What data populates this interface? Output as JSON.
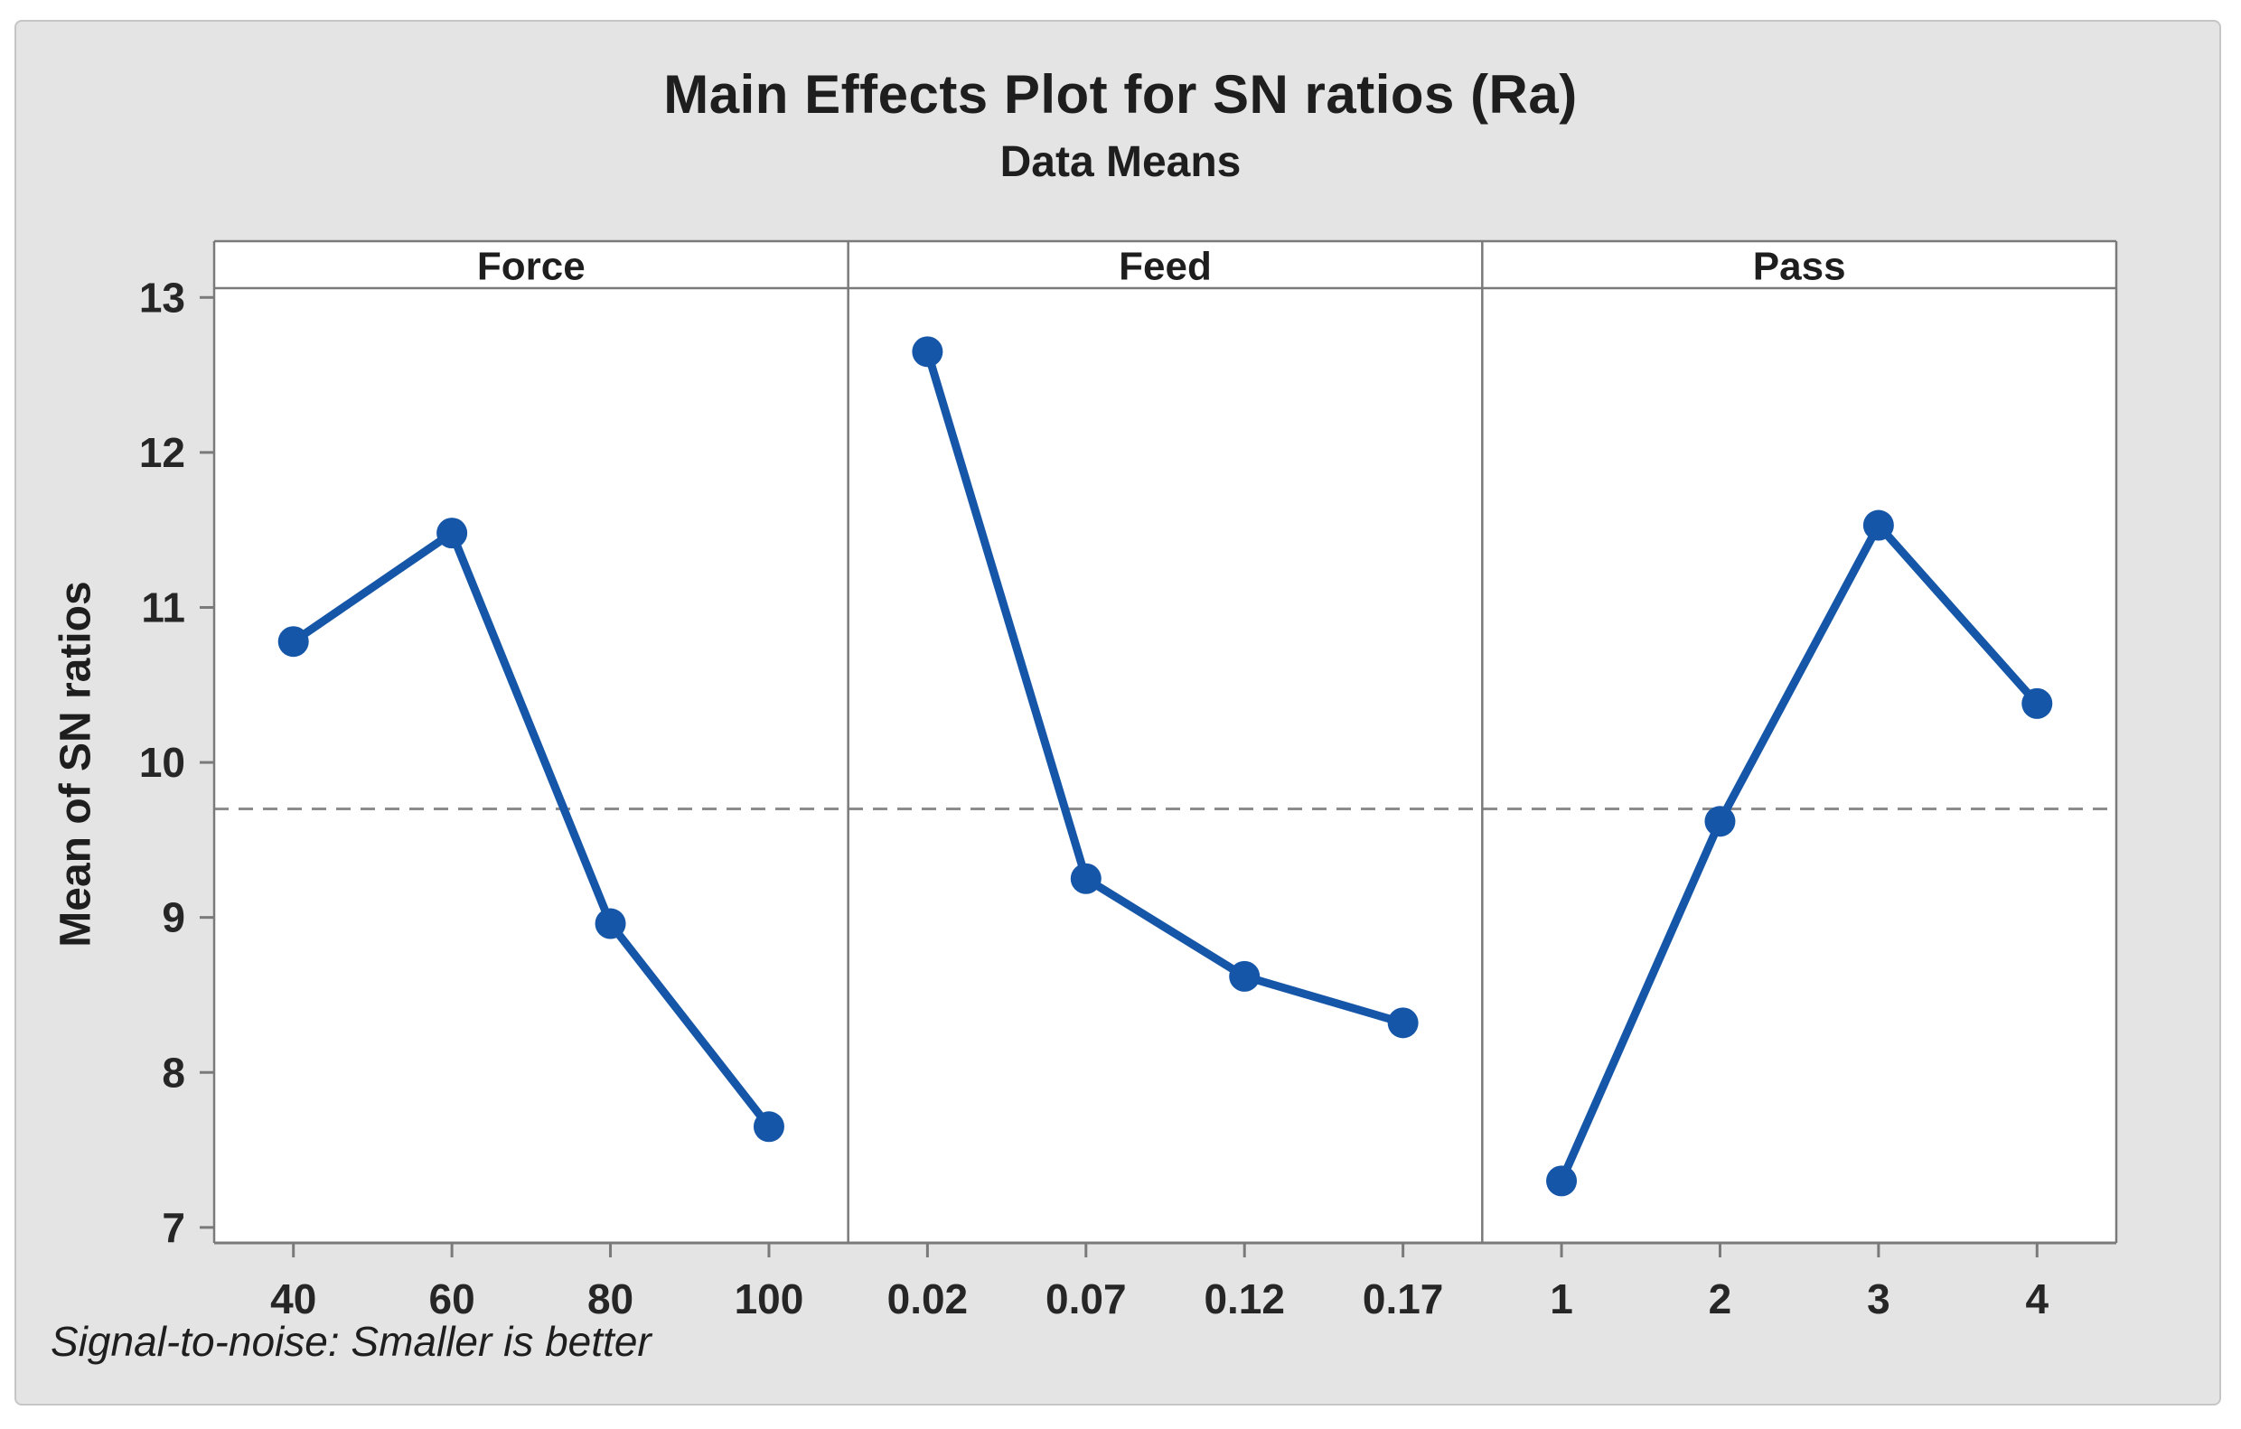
{
  "colors": {
    "accent_blue": "#1556A8",
    "figure_bg": "#E4E4E4",
    "plot_bg": "#FFFFFF",
    "frame": "#7A7A7A",
    "tick": "#7A7A7A",
    "reference_line": "#8C8C8C",
    "text": "#262626",
    "page_bg": "#FFFFFF"
  },
  "chart_data": {
    "type": "line",
    "title": "Main Effects Plot for SN ratios (Ra)",
    "subtitle": "Data Means",
    "ylabel": "Mean of SN ratios",
    "footnote": "Signal-to-noise: Smaller is better",
    "ylim": [
      6.9,
      13.06
    ],
    "yticks": [
      7,
      8,
      9,
      10,
      11,
      12,
      13
    ],
    "reference_line_value": 9.7,
    "grid": false,
    "legend": "none",
    "panels": [
      {
        "label": "Force",
        "categories": [
          "40",
          "60",
          "80",
          "100"
        ],
        "values": [
          10.78,
          11.48,
          8.96,
          7.65
        ]
      },
      {
        "label": "Feed",
        "categories": [
          "0.02",
          "0.07",
          "0.12",
          "0.17"
        ],
        "values": [
          12.65,
          9.25,
          8.62,
          8.32
        ]
      },
      {
        "label": "Pass",
        "categories": [
          "1",
          "2",
          "3",
          "4"
        ],
        "values": [
          7.3,
          9.62,
          11.53,
          10.38
        ]
      }
    ]
  }
}
